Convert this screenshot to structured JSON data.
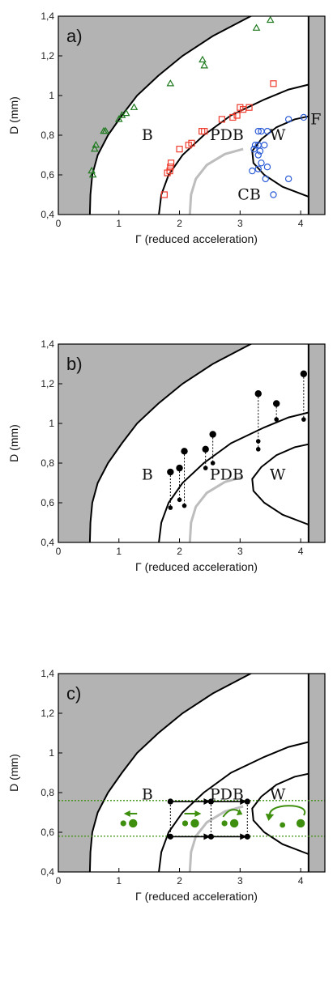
{
  "colors": {
    "shade": "#b3b3b3",
    "boundary": "#000000",
    "cb_boundary": "#bdbdbd",
    "triangles": "#1e7a1e",
    "squares": "#ef3b2c",
    "circles": "#2b5bd6",
    "green_marks": "#3f8f0f"
  },
  "chart_data": [
    {
      "panel": "a)",
      "type": "scatter",
      "xlabel": "Γ (reduced acceleration)",
      "ylabel": "D (mm)",
      "xlim": [
        0,
        4.4
      ],
      "ylim": [
        0.4,
        1.4
      ],
      "xticks": [
        "0",
        "1",
        "2",
        "3",
        "4"
      ],
      "yticks": [
        "0,4",
        "0,6",
        "0,8",
        "1",
        "1,2",
        "1,4"
      ],
      "region_labels": [
        "B",
        "PDB",
        "W",
        "CB",
        "F"
      ],
      "series": [
        {
          "marker": "triangle",
          "points": [
            [
              0.55,
              0.62
            ],
            [
              0.57,
              0.6
            ],
            [
              0.6,
              0.73
            ],
            [
              0.62,
              0.75
            ],
            [
              0.75,
              0.82
            ],
            [
              0.78,
              0.82
            ],
            [
              1.0,
              0.88
            ],
            [
              1.05,
              0.9
            ],
            [
              1.12,
              0.91
            ],
            [
              1.25,
              0.94
            ],
            [
              1.85,
              1.06
            ],
            [
              2.38,
              1.18
            ],
            [
              2.41,
              1.15
            ],
            [
              3.27,
              1.34
            ],
            [
              3.5,
              1.38
            ]
          ]
        },
        {
          "marker": "square",
          "points": [
            [
              1.75,
              0.5
            ],
            [
              1.8,
              0.61
            ],
            [
              1.84,
              0.62
            ],
            [
              1.85,
              0.64
            ],
            [
              1.86,
              0.66
            ],
            [
              2.0,
              0.73
            ],
            [
              2.15,
              0.75
            ],
            [
              2.2,
              0.76
            ],
            [
              2.37,
              0.82
            ],
            [
              2.41,
              0.82
            ],
            [
              2.7,
              0.88
            ],
            [
              2.88,
              0.89
            ],
            [
              2.95,
              0.9
            ],
            [
              3.0,
              0.94
            ],
            [
              3.05,
              0.93
            ],
            [
              3.15,
              0.94
            ],
            [
              3.55,
              1.06
            ]
          ]
        },
        {
          "marker": "circle",
          "points": [
            [
              3.3,
              0.82
            ],
            [
              3.35,
              0.82
            ],
            [
              3.45,
              0.82
            ],
            [
              3.25,
              0.75
            ],
            [
              3.3,
              0.75
            ],
            [
              3.4,
              0.75
            ],
            [
              3.23,
              0.73
            ],
            [
              3.33,
              0.72
            ],
            [
              3.3,
              0.7
            ],
            [
              3.2,
              0.62
            ],
            [
              3.3,
              0.63
            ],
            [
              3.35,
              0.66
            ],
            [
              3.45,
              0.64
            ],
            [
              3.42,
              0.58
            ],
            [
              3.55,
              0.5
            ],
            [
              3.8,
              0.58
            ],
            [
              3.8,
              0.88
            ],
            [
              4.05,
              0.89
            ]
          ]
        }
      ]
    },
    {
      "panel": "b)",
      "type": "scatter",
      "xlabel": "Γ (reduced acceleration)",
      "ylabel": "D (mm)",
      "xlim": [
        0,
        4.4
      ],
      "ylim": [
        0.4,
        1.4
      ],
      "xticks": [
        "0",
        "1",
        "2",
        "3",
        "4"
      ],
      "yticks": [
        "0,4",
        "0,6",
        "0,8",
        "1",
        "1,2",
        "1,4"
      ],
      "region_labels": [
        "B",
        "PDB",
        "W"
      ],
      "pairs": [
        {
          "x": 1.85,
          "top": 0.755,
          "bottom": 0.575
        },
        {
          "x": 2.0,
          "top": 0.775,
          "bottom": 0.615
        },
        {
          "x": 2.08,
          "top": 0.86,
          "bottom": 0.585
        },
        {
          "x": 2.43,
          "top": 0.87,
          "bottom": 0.775
        },
        {
          "x": 2.55,
          "top": 0.945,
          "bottom": 0.8
        },
        {
          "x": 3.3,
          "top": 1.15,
          "bottom": 0.87,
          "middle": 0.91
        },
        {
          "x": 3.6,
          "top": 1.1,
          "bottom": 1.02
        },
        {
          "x": 4.05,
          "top": 1.25,
          "bottom": 1.02
        }
      ]
    },
    {
      "panel": "c)",
      "type": "line",
      "xlabel": "Γ (reduced acceleration)",
      "ylabel": "D (mm)",
      "xlim": [
        0,
        4.4
      ],
      "ylim": [
        0.4,
        1.4
      ],
      "xticks": [
        "0",
        "1",
        "2",
        "3",
        "4"
      ],
      "yticks": [
        "0,4",
        "0,6",
        "0,8",
        "1",
        "1,2",
        "1,4"
      ],
      "region_labels": [
        "B",
        "PDB",
        "W"
      ],
      "dotted_levels": [
        0.76,
        0.58
      ],
      "path_x": [
        1.85,
        2.52,
        3.12
      ],
      "path_y": [
        0.755,
        0.578
      ]
    }
  ]
}
